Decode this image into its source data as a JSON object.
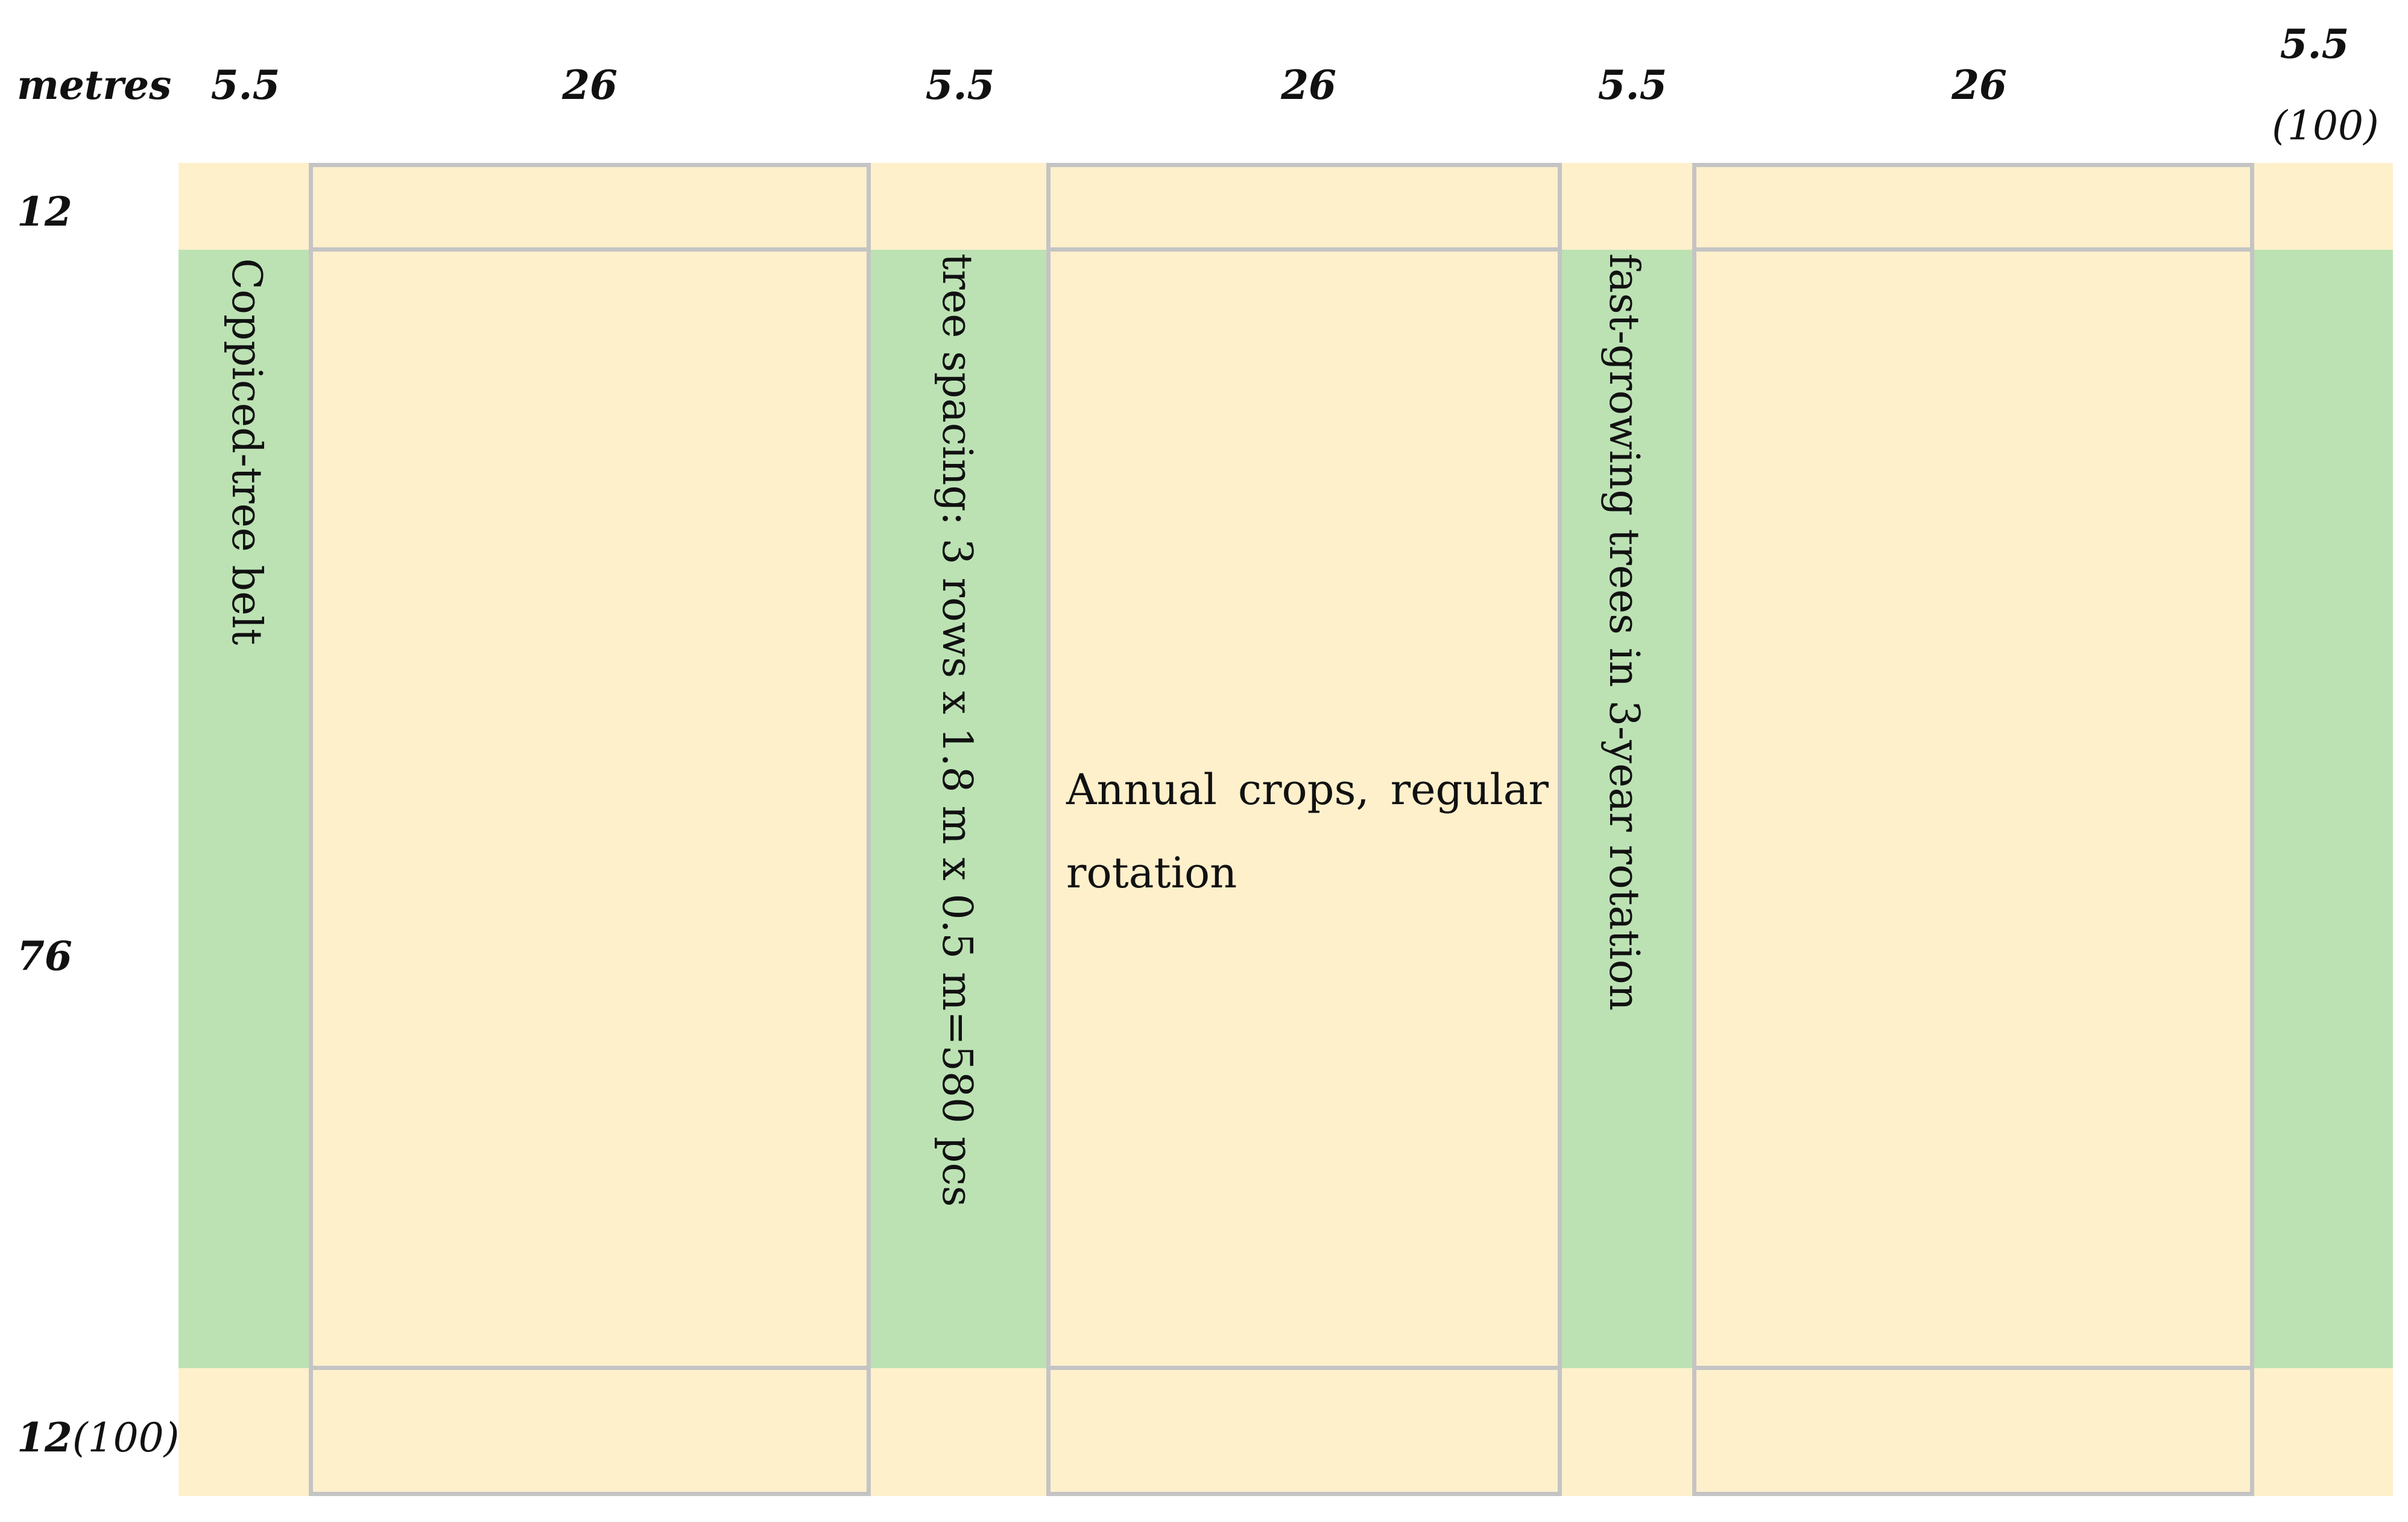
{
  "header": {
    "unit_label": "metres",
    "column_widths": [
      "5.5",
      "26",
      "5.5",
      "26",
      "5.5",
      "26",
      "5.5"
    ],
    "total_width_label": "(100)"
  },
  "rows": {
    "top_height": "12",
    "middle_height": "76",
    "bottom_height": "12",
    "total_height_label": "(100)"
  },
  "annotations": {
    "belt_1": "Coppiced-tree belt",
    "belt_2": "tree spacing: 3 rows x 1.8 m x 0.5 m=580 pcs",
    "belt_3": "fast-growing trees in 3-year rotation",
    "crop_plot": "Annual crops, regular rotation"
  },
  "colors": {
    "crop_area": "#fff0cc",
    "tree_belt": "#bce2b4",
    "plot_border": "#c4c4c4"
  }
}
